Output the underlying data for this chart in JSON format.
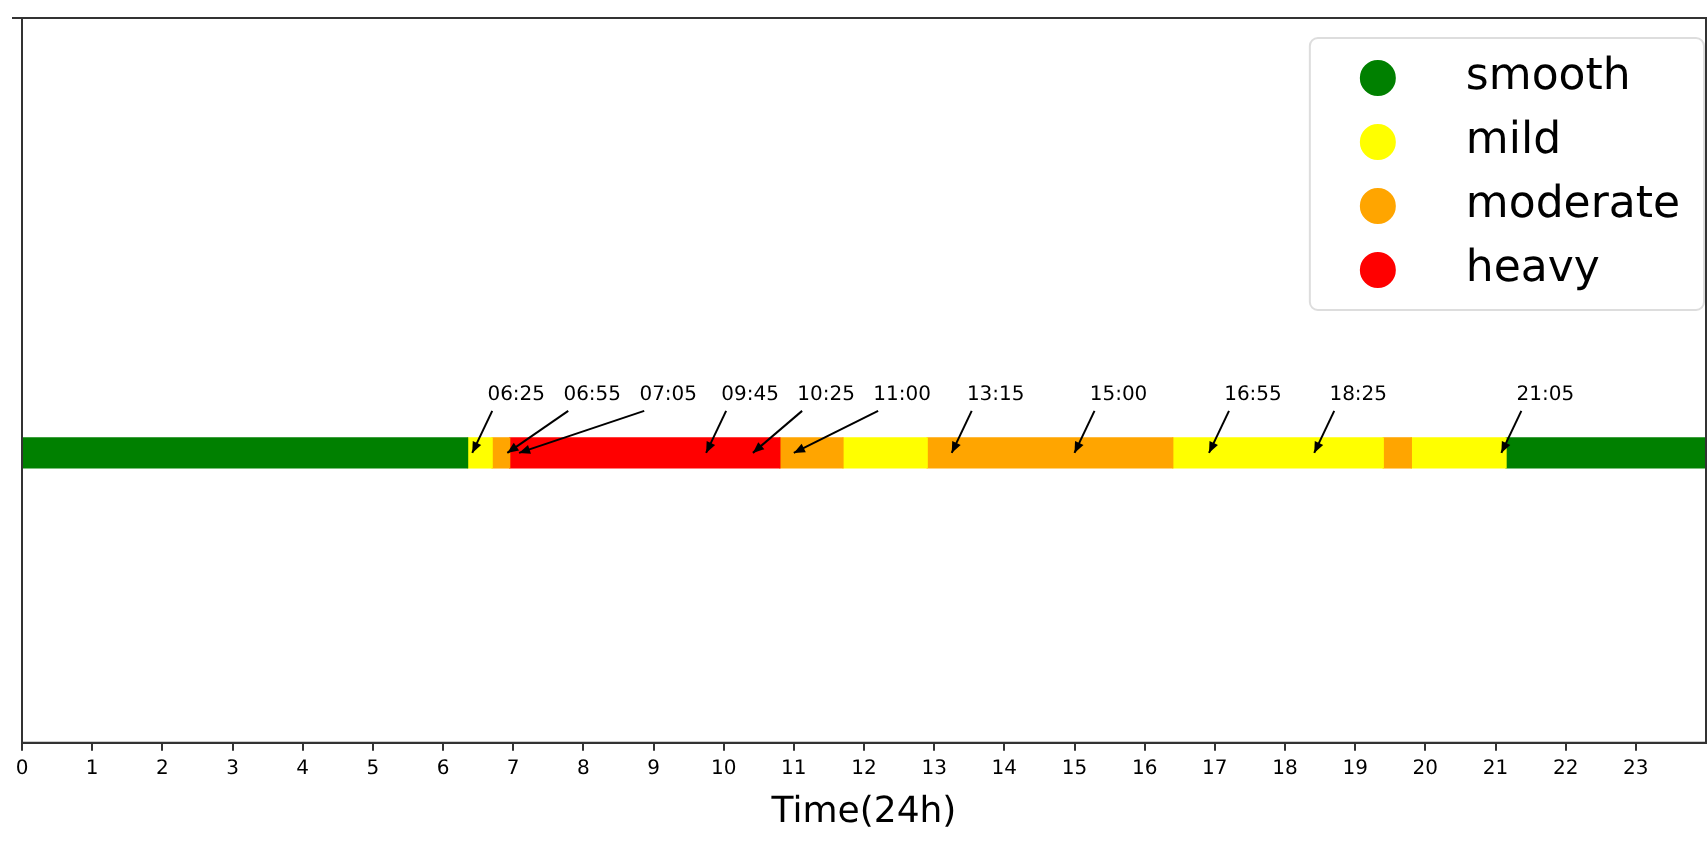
{
  "chart_data": {
    "type": "bar",
    "orientation": "horizontal",
    "xlabel": "Time(24h)",
    "xlim": [
      0,
      24
    ],
    "xticks": [
      0,
      1,
      2,
      3,
      4,
      5,
      6,
      7,
      8,
      9,
      10,
      11,
      12,
      13,
      14,
      15,
      16,
      17,
      18,
      19,
      20,
      21,
      22,
      23
    ],
    "categories": [
      null
    ],
    "grid": false,
    "legend": "top right",
    "marker": "circle",
    "series": [
      {
        "name": "smooth",
        "color": "#008000",
        "base": [
          0
        ],
        "values": [
          6.35
        ]
      },
      {
        "name": "mild",
        "color": "#ffff00",
        "base": [
          6.35
        ],
        "values": [
          0.35
        ]
      },
      {
        "name": "moderate",
        "color": "#ffa500",
        "base": [
          6.7
        ],
        "values": [
          0.25
        ]
      },
      {
        "name": "heavy",
        "color": "#ff0000",
        "base": [
          6.95
        ],
        "values": [
          3.85
        ]
      },
      {
        "color": "#ffa500",
        "base": [
          10.8
        ],
        "values": [
          0.9
        ]
      },
      {
        "color": "#ffff00",
        "base": [
          11.7
        ],
        "values": [
          1.2
        ]
      },
      {
        "color": "#ffa500",
        "base": [
          12.9
        ],
        "values": [
          3.5
        ]
      },
      {
        "color": "#ffff00",
        "base": [
          16.4
        ],
        "values": [
          3
        ]
      },
      {
        "color": "#ffa500",
        "base": [
          19.4
        ],
        "values": [
          0.4
        ]
      },
      {
        "color": "#ffff00",
        "base": [
          19.8
        ],
        "values": [
          1.35
        ]
      },
      {
        "color": "#008000",
        "base": [
          21.15
        ],
        "values": [
          2.85
        ]
      }
    ],
    "annotations": [
      "06:25",
      "06:55",
      "07:05",
      "09:45",
      "10:25",
      "11:00",
      "13:15",
      "15:00",
      "16:55",
      "18:25",
      "21:05"
    ]
  }
}
